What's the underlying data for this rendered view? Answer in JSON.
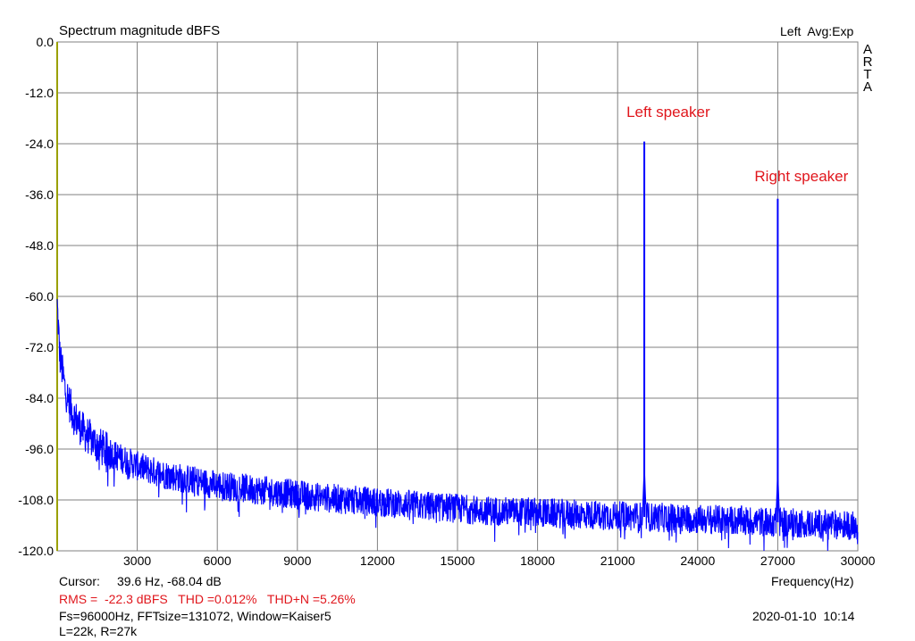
{
  "chart_data": {
    "type": "line",
    "title": "Spectrum magnitude dBFS",
    "header_right": "Left  Avg:Exp",
    "brand_letters": [
      "A",
      "R",
      "T",
      "A"
    ],
    "xlabel": "Frequency(Hz)",
    "ylabel": "",
    "xlim": [
      0,
      30000
    ],
    "ylim": [
      -120,
      0
    ],
    "x_ticks": [
      "3000",
      "6000",
      "9000",
      "12000",
      "15000",
      "18000",
      "21000",
      "24000",
      "27000",
      "30000"
    ],
    "y_ticks": [
      "0.0",
      "-12.0",
      "-24.0",
      "-36.0",
      "-48.0",
      "-60.0",
      "-72.0",
      "-84.0",
      "-96.0",
      "-108.0",
      "-120.0"
    ],
    "grid": true,
    "series": [
      {
        "color": "#0000ff",
        "noise_floor_x": [
          0,
          100,
          300,
          600,
          1000,
          1500,
          2000,
          3000,
          4000,
          6000,
          8000,
          10000,
          12000,
          14000,
          16000,
          18000,
          20000,
          22000,
          24000,
          26000,
          28000,
          30000
        ],
        "noise_floor_y": [
          -62,
          -74,
          -82,
          -88,
          -92,
          -95,
          -97,
          -100,
          -102,
          -104.5,
          -106,
          -107.5,
          -108.5,
          -109.5,
          -110.5,
          -111,
          -111.5,
          -112,
          -112.5,
          -113,
          -113.5,
          -114
        ],
        "peaks": [
          {
            "x": 22000,
            "y": -23.5
          },
          {
            "x": 27000,
            "y": -37.0
          }
        ]
      }
    ],
    "annotations": [
      {
        "text": "Left speaker",
        "x": 22000,
        "y": -24
      },
      {
        "text": "Right speaker",
        "x": 27000,
        "y": -37
      }
    ],
    "colors": {
      "trace": "#0000ff",
      "annotation": "#e0161c",
      "grid": "#808080",
      "y_axis": "#9aa000"
    }
  },
  "footer": {
    "cursor_label": "Cursor:",
    "cursor_value": "39.6 Hz, -68.04 dB",
    "rms_line": "RMS =  -22.3 dBFS   THD =0.012%   THD+N =5.26%",
    "fs_line": "Fs=96000Hz, FFTsize=131072, Window=Kaiser5",
    "lr_line": "L=22k, R=27k",
    "datetime": "2020-01-10  10:14"
  }
}
